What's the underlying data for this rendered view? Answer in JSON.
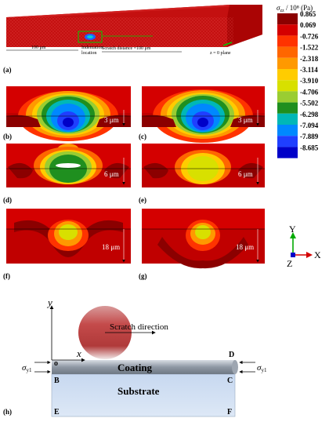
{
  "legend": {
    "title_sigma": "σ",
    "title_sub": "zz",
    "title_rest": " / 10⁸ (Pa)",
    "values": [
      "0.865",
      "0.069",
      "-0.726",
      "-1.522",
      "-2.318",
      "-3.114",
      "-3.910",
      "-4.706",
      "-5.502",
      "-6.298",
      "-7.094",
      "-7.889",
      "-8.685"
    ],
    "colors": [
      "#8b0000",
      "#d40000",
      "#ff3300",
      "#ff6600",
      "#ff9900",
      "#ffcc00",
      "#d8e000",
      "#9acd32",
      "#1f8f1f",
      "#00b7b7",
      "#0088ff",
      "#1f3fff",
      "#0000c8"
    ]
  },
  "panel_a": {
    "label": "(a)",
    "dim_left": "100 μm",
    "indent_loc": "Indentation\nlocation",
    "scratch_dist": "Scratch distance =100 μm",
    "plane": "z = 0 plane"
  },
  "panels": [
    {
      "id": "b",
      "label": "(b)",
      "dim": "3 μm"
    },
    {
      "id": "c",
      "label": "(c)",
      "dim": "3 μm"
    },
    {
      "id": "d",
      "label": "(d)",
      "dim": "6 μm"
    },
    {
      "id": "e",
      "label": "(e)",
      "dim": "6 μm"
    },
    {
      "id": "f",
      "label": "(f)",
      "dim": "18 μm"
    },
    {
      "id": "g",
      "label": "(g)",
      "dim": "18 μm"
    }
  ],
  "axes": {
    "y": "Y",
    "x": "X",
    "z": "Z"
  },
  "panel_h": {
    "label": "(h)",
    "y_axis": "y",
    "x_axis": "x",
    "origin": "o",
    "scratch_direction": "Scratch direction",
    "coating": "Coating",
    "substrate": "Substrate",
    "corners": {
      "D": "D",
      "B": "B",
      "C": "C",
      "E": "E",
      "F": "F"
    },
    "sigma": "σ",
    "sigma_sub": "y1"
  }
}
